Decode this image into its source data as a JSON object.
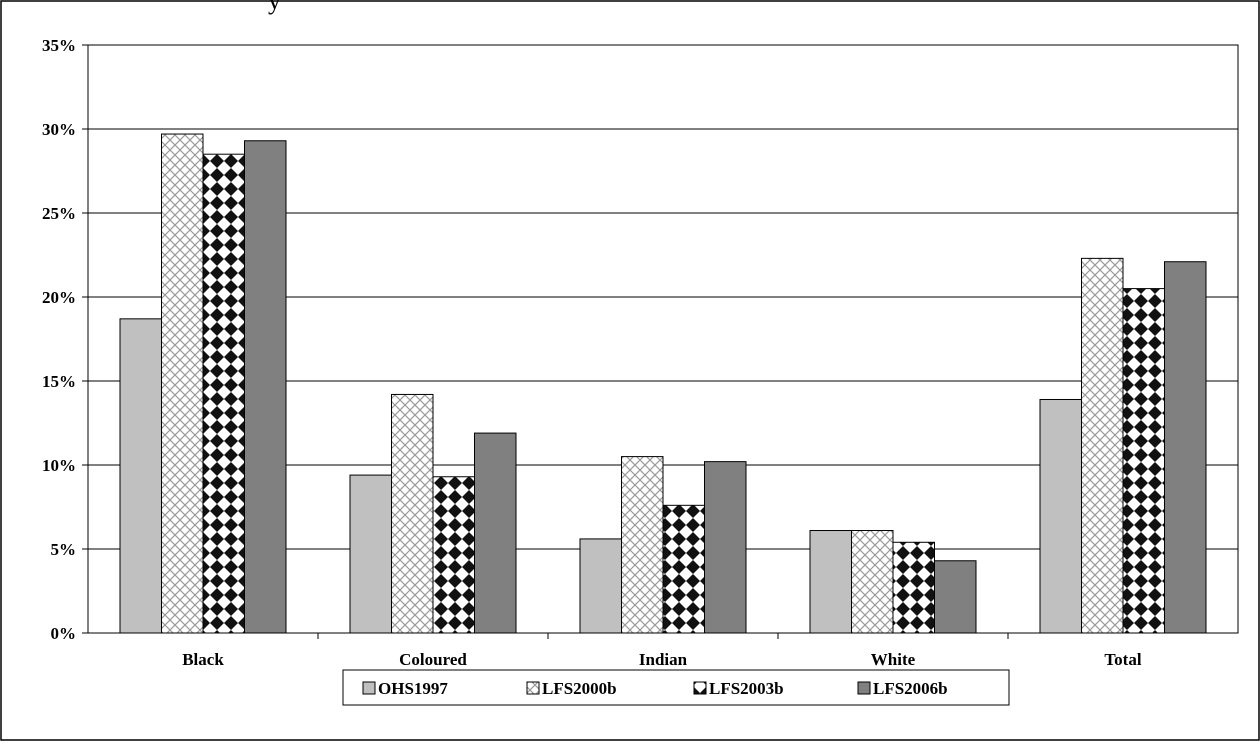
{
  "top_text": "y",
  "chart_data": {
    "type": "bar",
    "title": "",
    "xlabel": "",
    "ylabel": "",
    "categories": [
      "Black",
      "Coloured",
      "Indian",
      "White",
      "Total"
    ],
    "series": [
      {
        "name": "OHS1997",
        "values": [
          0.187,
          0.094,
          0.056,
          0.061,
          0.139
        ],
        "color": "#c0c0c0",
        "pattern": "solid"
      },
      {
        "name": "LFS2000b",
        "values": [
          0.297,
          0.142,
          0.105,
          0.061,
          0.223
        ],
        "color": "#ffffff",
        "pattern": "crosshatch"
      },
      {
        "name": "LFS2003b",
        "values": [
          0.285,
          0.093,
          0.076,
          0.054,
          0.205
        ],
        "color": "#000000",
        "pattern": "diamond-checker"
      },
      {
        "name": "LFS2006b",
        "values": [
          0.293,
          0.119,
          0.102,
          0.043,
          0.221
        ],
        "color": "#808080",
        "pattern": "solid"
      }
    ],
    "ylim": [
      0,
      0.35
    ],
    "yticks": [
      "0%",
      "5%",
      "10%",
      "15%",
      "20%",
      "25%",
      "30%",
      "35%"
    ],
    "grid": true,
    "legend": "bottom"
  }
}
